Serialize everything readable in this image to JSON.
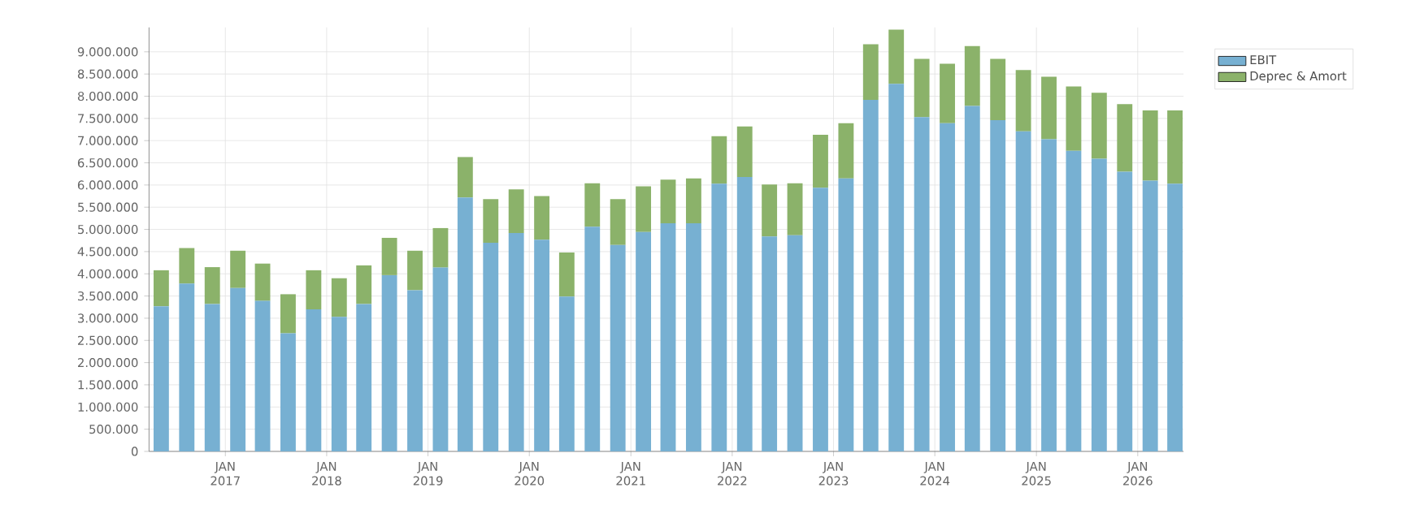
{
  "chart_data": {
    "type": "bar",
    "stacked": true,
    "grid": true,
    "legend": "right",
    "x": [
      "2016-05-15",
      "2016-08-15",
      "2016-11-15",
      "2017-02-15",
      "2017-05-15",
      "2017-08-15",
      "2017-11-15",
      "2018-02-15",
      "2018-05-15",
      "2018-08-15",
      "2018-11-15",
      "2019-02-15",
      "2019-05-15",
      "2019-08-15",
      "2019-11-15",
      "2020-02-15",
      "2020-05-15",
      "2020-08-15",
      "2020-11-15",
      "2021-02-15",
      "2021-05-15",
      "2021-08-15",
      "2021-11-15",
      "2022-02-15",
      "2022-05-15",
      "2022-08-15",
      "2022-11-15",
      "2023-02-15",
      "2023-05-15",
      "2023-08-15",
      "2023-11-15",
      "2024-02-15",
      "2024-05-15",
      "2024-08-15",
      "2024-11-15",
      "2025-02-15",
      "2025-05-15",
      "2025-08-15",
      "2025-11-15",
      "2026-02-15",
      "2026-05-15"
    ],
    "series": [
      {
        "name": "EBIT",
        "color": "#77b0d2",
        "values": [
          3270000,
          3780000,
          3320000,
          3680000,
          3390000,
          2660000,
          3200000,
          3030000,
          3320000,
          3970000,
          3630000,
          4140000,
          5720000,
          4700000,
          4920000,
          4770000,
          3490000,
          5060000,
          4650000,
          4940000,
          5140000,
          5140000,
          6030000,
          6180000,
          4840000,
          4870000,
          5940000,
          6150000,
          7920000,
          8280000,
          7530000,
          7390000,
          7780000,
          7460000,
          7210000,
          7030000,
          6770000,
          6590000,
          6300000,
          6100000,
          6030000
        ]
      },
      {
        "name": "Deprec & Amort",
        "color": "#8bb26a",
        "values": [
          810000,
          800000,
          830000,
          840000,
          840000,
          880000,
          880000,
          870000,
          870000,
          840000,
          890000,
          890000,
          910000,
          980000,
          980000,
          980000,
          990000,
          980000,
          1030000,
          1030000,
          980000,
          1010000,
          1070000,
          1140000,
          1170000,
          1170000,
          1190000,
          1240000,
          1250000,
          1220000,
          1310000,
          1340000,
          1350000,
          1380000,
          1380000,
          1410000,
          1450000,
          1490000,
          1520000,
          1580000,
          1650000
        ]
      }
    ],
    "xlim": [
      "2016-04-01",
      "2026-06-15"
    ],
    "xticks": [
      {
        "value": "2017-01-01",
        "label": "JAN 2017"
      },
      {
        "value": "2018-01-01",
        "label": "JAN 2018"
      },
      {
        "value": "2019-01-01",
        "label": "JAN 2019"
      },
      {
        "value": "2020-01-01",
        "label": "JAN 2020"
      },
      {
        "value": "2021-01-01",
        "label": "JAN 2021"
      },
      {
        "value": "2022-01-01",
        "label": "JAN 2022"
      },
      {
        "value": "2023-01-01",
        "label": "JAN 2023"
      },
      {
        "value": "2024-01-01",
        "label": "JAN 2024"
      },
      {
        "value": "2025-01-01",
        "label": "JAN 2025"
      },
      {
        "value": "2026-01-01",
        "label": "JAN 2026"
      }
    ],
    "ylim": [
      0,
      9550000
    ],
    "yticks": [
      0,
      {
        "value": 500000,
        "label": "500.000"
      },
      {
        "value": 1000000,
        "label": "1.000.000"
      },
      {
        "value": 1500000,
        "label": "1.500.000"
      },
      {
        "value": 2000000,
        "label": "2.000.000"
      },
      {
        "value": 2500000,
        "label": "2.500.000"
      },
      {
        "value": 3000000,
        "label": "3.000.000"
      },
      {
        "value": 3500000,
        "label": "3.500.000"
      },
      {
        "value": 4000000,
        "label": "4.000.000"
      },
      {
        "value": 4500000,
        "label": "4.500.000"
      },
      {
        "value": 5000000,
        "label": "5.000.000"
      },
      {
        "value": 5500000,
        "label": "5.500.000"
      },
      {
        "value": 6000000,
        "label": "6.000.000"
      },
      {
        "value": 6500000,
        "label": "6.500.000"
      },
      {
        "value": 7000000,
        "label": "7.000.000"
      },
      {
        "value": 7500000,
        "label": "7.500.000"
      },
      {
        "value": 8000000,
        "label": "8.000.000"
      },
      {
        "value": 8500000,
        "label": "8.500.000"
      },
      {
        "value": 9000000,
        "label": "9.000.000"
      }
    ]
  }
}
